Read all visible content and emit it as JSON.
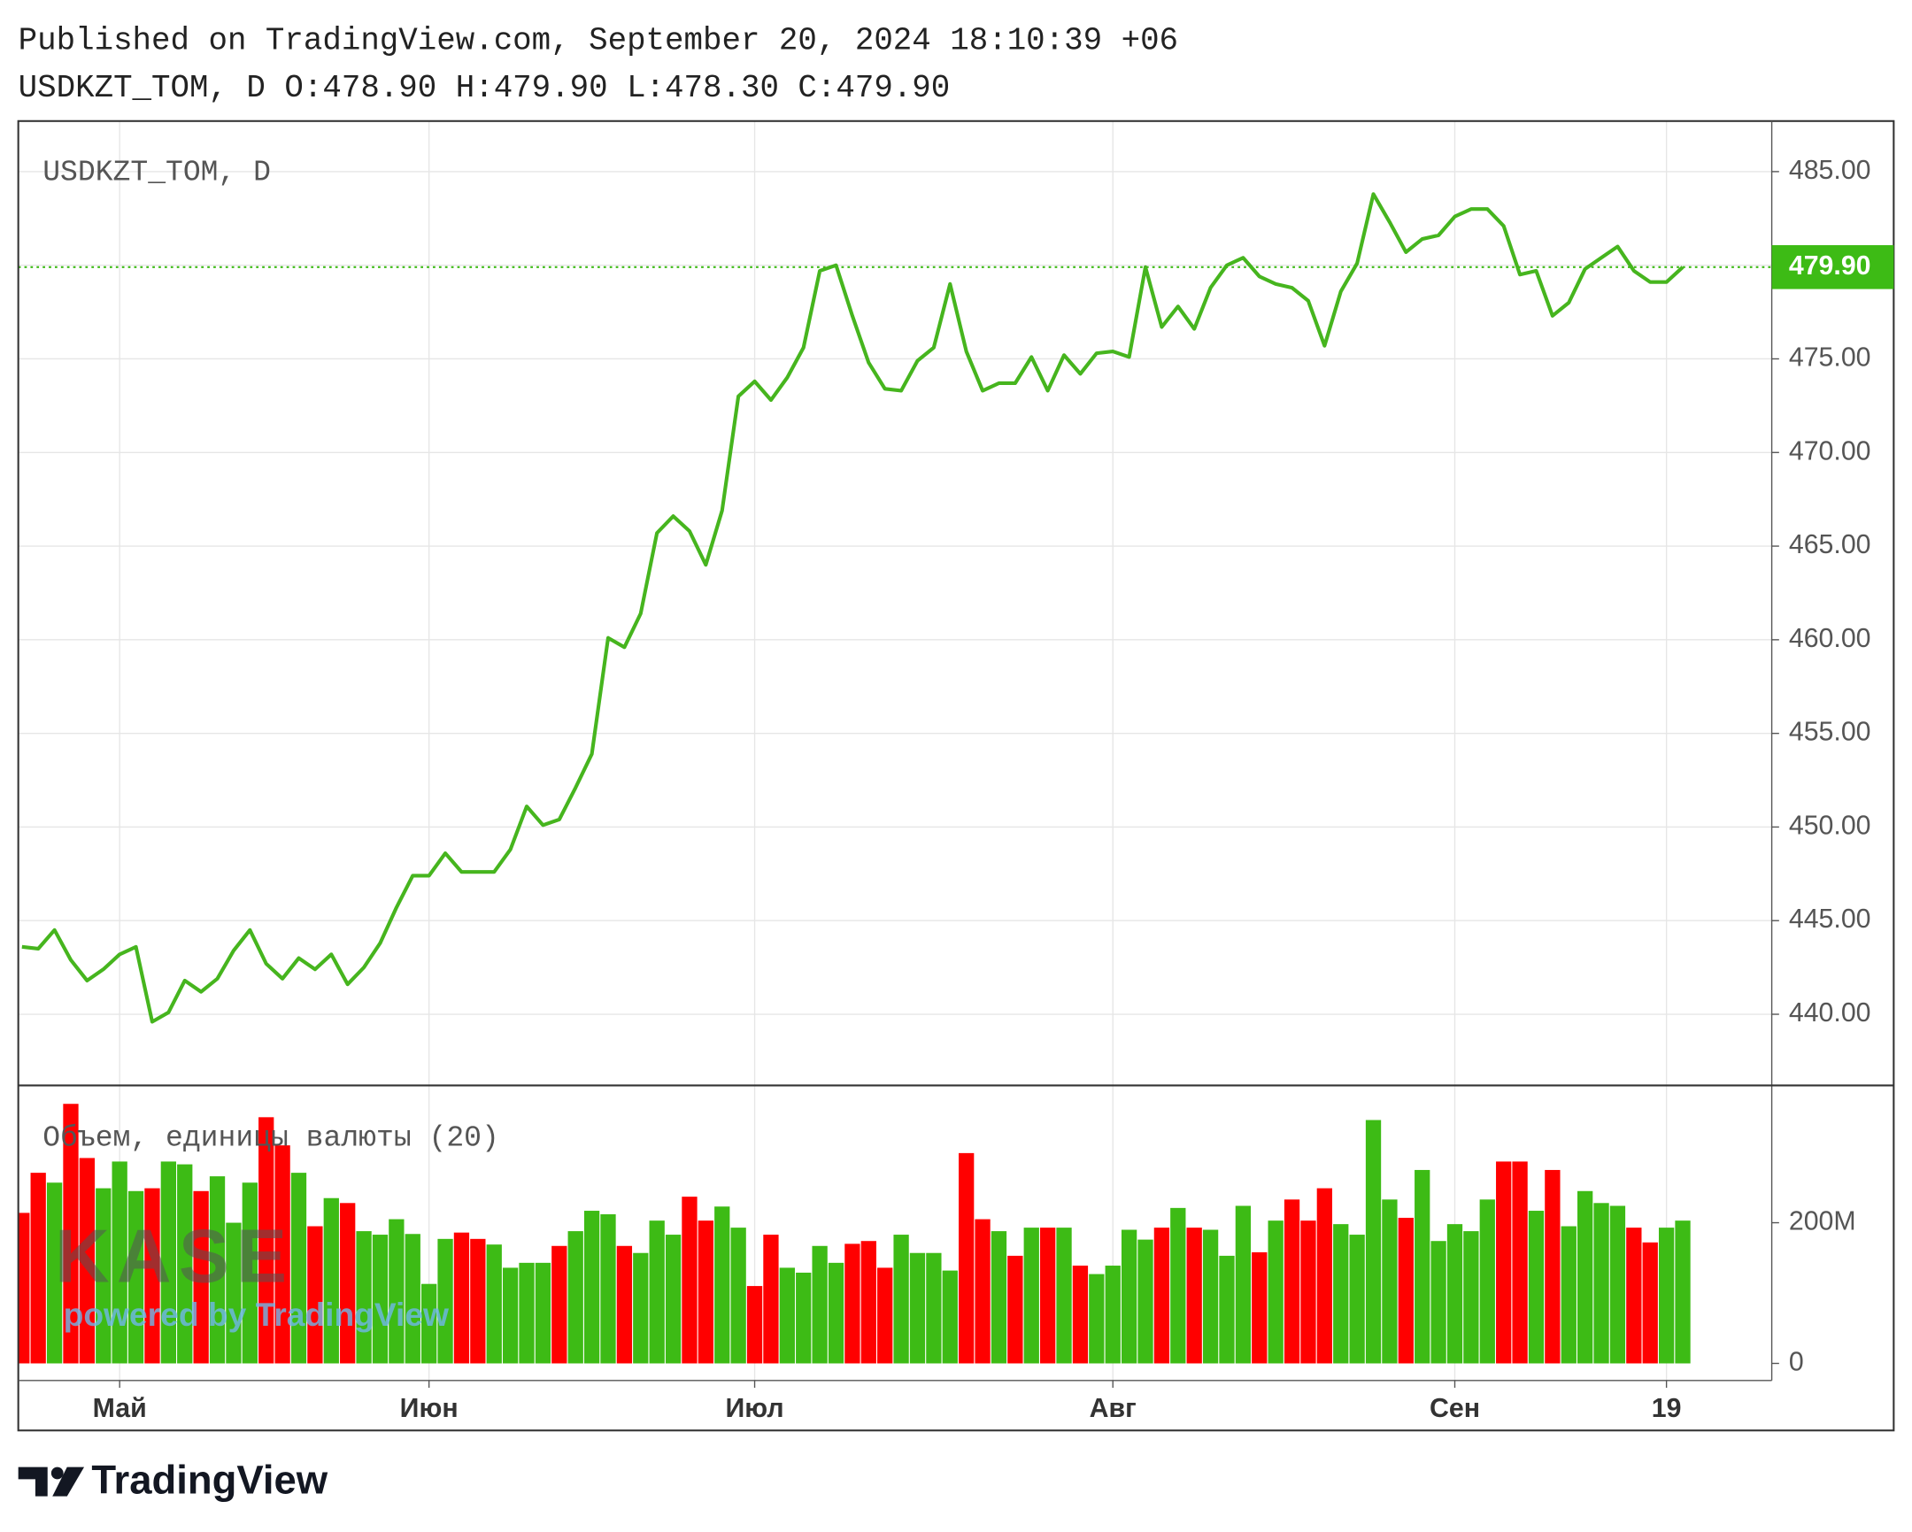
{
  "header": {
    "published": "Published on TradingView.com, September 20, 2024 18:10:39 +06",
    "quote": "USDKZT_TOM, D O:478.90 H:479.90 L:478.30 C:479.90"
  },
  "watermark": {
    "logo": "KASE",
    "tagline": "powered by TradingView"
  },
  "footer": {
    "brand": "TradingView"
  },
  "chart_data": {
    "type": "line",
    "categories": [
      null,
      null,
      null,
      null,
      null,
      null,
      "Май",
      null,
      null,
      null,
      null,
      null,
      null,
      null,
      null,
      null,
      null,
      null,
      null,
      null,
      null,
      null,
      null,
      null,
      null,
      "Июн",
      null,
      null,
      null,
      null,
      null,
      null,
      null,
      null,
      null,
      null,
      null,
      null,
      null,
      null,
      null,
      null,
      null,
      null,
      null,
      "Июл",
      null,
      null,
      null,
      null,
      null,
      null,
      null,
      null,
      null,
      null,
      null,
      null,
      null,
      null,
      null,
      null,
      null,
      null,
      null,
      null,
      null,
      "Авг",
      null,
      null,
      null,
      null,
      null,
      null,
      null,
      null,
      null,
      null,
      null,
      null,
      null,
      null,
      null,
      null,
      null,
      null,
      null,
      null,
      "Сен",
      null,
      null,
      null,
      null,
      null,
      null,
      null,
      null,
      null,
      null,
      null,
      null,
      "19",
      null
    ],
    "series": [
      {
        "name": "USDKZT_TOM, D",
        "color": "#46b51e",
        "values": [
          443.6,
          443.5,
          444.5,
          442.9,
          441.8,
          442.4,
          443.2,
          443.6,
          439.6,
          440.1,
          441.8,
          441.2,
          441.9,
          443.4,
          444.5,
          442.7,
          441.9,
          443.0,
          442.4,
          443.2,
          441.6,
          442.5,
          443.8,
          445.7,
          447.4,
          447.4,
          448.6,
          447.6,
          447.6,
          447.6,
          448.8,
          451.1,
          450.1,
          450.4,
          452.1,
          453.9,
          460.1,
          459.6,
          461.4,
          465.7,
          466.6,
          465.8,
          464.0,
          466.9,
          473.0,
          473.8,
          472.8,
          474.0,
          475.6,
          479.7,
          480.0,
          477.3,
          474.8,
          473.4,
          473.3,
          474.9,
          475.6,
          479.0,
          475.4,
          473.3,
          473.7,
          473.7,
          475.1,
          473.3,
          475.2,
          474.2,
          475.3,
          475.4,
          475.1,
          479.9,
          476.7,
          477.8,
          476.6,
          478.8,
          480.0,
          480.4,
          479.4,
          479.0,
          478.8,
          478.1,
          475.7,
          478.6,
          480.1,
          483.8,
          482.3,
          480.7,
          481.4,
          481.6,
          482.6,
          483.0,
          483.0,
          482.1,
          479.5,
          479.7,
          477.3,
          478.0,
          479.8,
          480.4,
          481.0,
          479.7,
          479.1,
          479.1,
          479.9
        ]
      },
      {
        "name": "Объем, единицы валюты (20)",
        "type": "bar",
        "axis": "y2",
        "values": [
          214,
          271,
          257,
          369,
          292,
          249,
          287,
          245,
          249,
          287,
          283,
          245,
          266,
          200,
          257,
          350,
          310,
          271,
          195,
          235,
          228,
          188,
          183,
          205,
          184,
          113,
          177,
          186,
          177,
          169,
          136,
          143,
          143,
          167,
          188,
          217,
          212,
          167,
          157,
          203,
          183,
          237,
          203,
          223,
          193,
          110,
          183,
          136,
          129,
          167,
          143,
          170,
          174,
          136,
          183,
          157,
          157,
          132,
          299,
          205,
          188,
          153,
          193,
          193,
          193,
          139,
          127,
          139,
          190,
          176,
          193,
          221,
          193,
          190,
          153,
          224,
          158,
          203,
          233,
          203,
          249,
          198,
          183,
          346,
          233,
          207,
          275,
          174,
          198,
          188,
          233,
          287,
          287,
          217,
          275,
          195,
          245,
          228,
          224,
          193,
          172,
          193,
          203
        ],
        "colors": [
          "#ff0000",
          "#ff0000",
          "#3dbb15",
          "#ff0000",
          "#ff0000",
          "#3dbb15",
          "#3dbb15",
          "#3dbb15",
          "#ff0000",
          "#3dbb15",
          "#3dbb15",
          "#ff0000",
          "#3dbb15",
          "#3dbb15",
          "#3dbb15",
          "#ff0000",
          "#ff0000",
          "#3dbb15",
          "#ff0000",
          "#3dbb15",
          "#ff0000",
          "#3dbb15",
          "#3dbb15",
          "#3dbb15",
          "#3dbb15",
          "#3dbb15",
          "#3dbb15",
          "#ff0000",
          "#ff0000",
          "#3dbb15",
          "#3dbb15",
          "#3dbb15",
          "#3dbb15",
          "#ff0000",
          "#3dbb15",
          "#3dbb15",
          "#3dbb15",
          "#ff0000",
          "#3dbb15",
          "#3dbb15",
          "#3dbb15",
          "#ff0000",
          "#ff0000",
          "#3dbb15",
          "#3dbb15",
          "#ff0000",
          "#ff0000",
          "#3dbb15",
          "#3dbb15",
          "#3dbb15",
          "#3dbb15",
          "#ff0000",
          "#ff0000",
          "#ff0000",
          "#3dbb15",
          "#3dbb15",
          "#3dbb15",
          "#3dbb15",
          "#ff0000",
          "#ff0000",
          "#3dbb15",
          "#ff0000",
          "#3dbb15",
          "#ff0000",
          "#3dbb15",
          "#ff0000",
          "#3dbb15",
          "#3dbb15",
          "#3dbb15",
          "#3dbb15",
          "#ff0000",
          "#3dbb15",
          "#ff0000",
          "#3dbb15",
          "#3dbb15",
          "#3dbb15",
          "#ff0000",
          "#3dbb15",
          "#ff0000",
          "#ff0000",
          "#ff0000",
          "#3dbb15",
          "#3dbb15",
          "#3dbb15",
          "#3dbb15",
          "#ff0000",
          "#3dbb15",
          "#3dbb15",
          "#3dbb15",
          "#3dbb15",
          "#3dbb15",
          "#ff0000",
          "#ff0000",
          "#3dbb15",
          "#ff0000",
          "#3dbb15",
          "#3dbb15",
          "#3dbb15",
          "#3dbb15",
          "#ff0000",
          "#ff0000",
          "#3dbb15",
          "#3dbb15"
        ]
      }
    ],
    "ylim": [
      436.2,
      487.7
    ],
    "yticks": [
      {
        "value": 440,
        "label": "440.00"
      },
      {
        "value": 445,
        "label": "445.00"
      },
      {
        "value": 450,
        "label": "450.00"
      },
      {
        "value": 455,
        "label": "455.00"
      },
      {
        "value": 460,
        "label": "460.00"
      },
      {
        "value": 465,
        "label": "465.00"
      },
      {
        "value": 470,
        "label": "470.00"
      },
      {
        "value": 475,
        "label": "475.00"
      },
      {
        "value": 480,
        "label": "480.00"
      },
      {
        "value": 485,
        "label": "485.00"
      }
    ],
    "y2lim": [
      0,
      390
    ],
    "y2ticks": [
      0,
      {
        "value": 200,
        "label": "200M"
      }
    ],
    "last_price": {
      "value": 479.9,
      "label": "479.90",
      "color": "#3dbb15"
    },
    "grid": true
  }
}
